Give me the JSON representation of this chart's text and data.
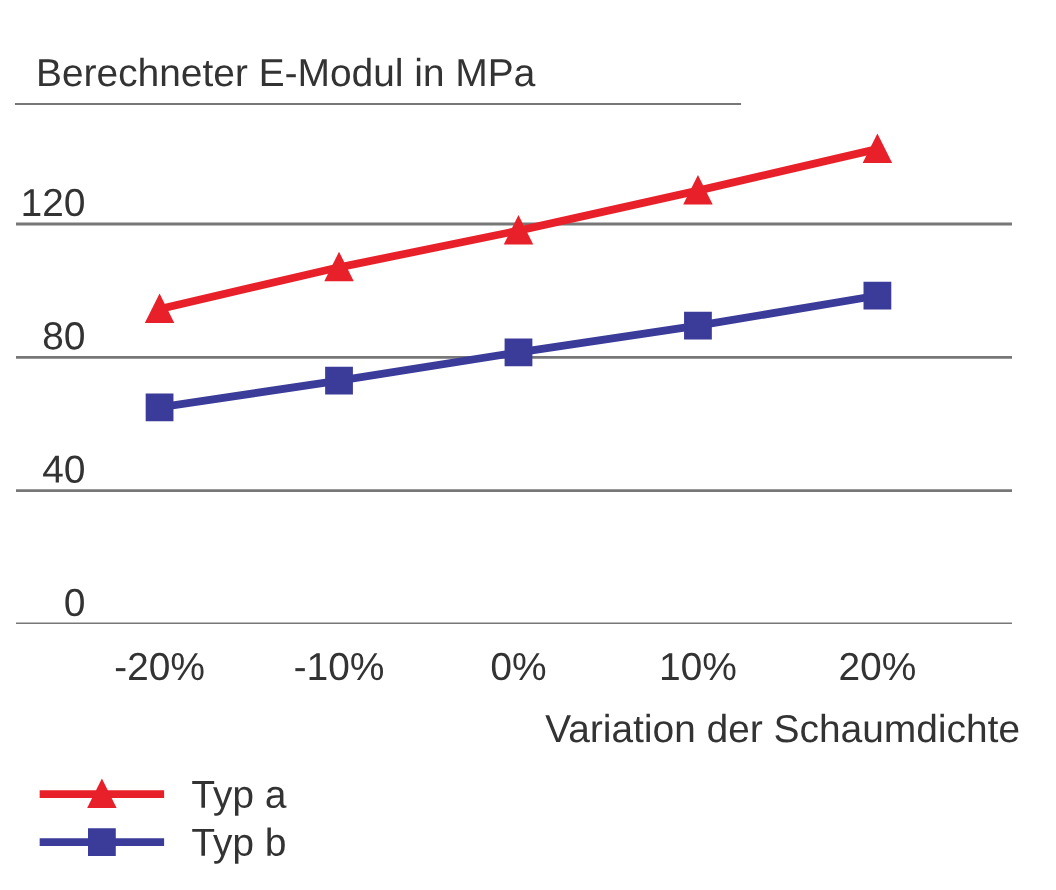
{
  "chart_data": {
    "type": "line",
    "title": "Berechneter E-Modul in MPa",
    "xlabel": "Variation der Schaumdichte",
    "categories": [
      "-20%",
      "-10%",
      "0%",
      "10%",
      "20%"
    ],
    "series": [
      {
        "name": "Typ a",
        "color": "#e8202a",
        "marker": "triangle",
        "values": [
          94.5,
          107,
          118,
          130,
          142.5
        ]
      },
      {
        "name": "Typ b",
        "color": "#3b3b9a",
        "marker": "square",
        "values": [
          65,
          73,
          81.5,
          89.5,
          98.5
        ]
      }
    ],
    "ylim": [
      0,
      156
    ],
    "yticks": [
      0,
      40,
      80,
      120
    ],
    "grid": "y",
    "legend": "bottom left",
    "line_style": "solid"
  }
}
